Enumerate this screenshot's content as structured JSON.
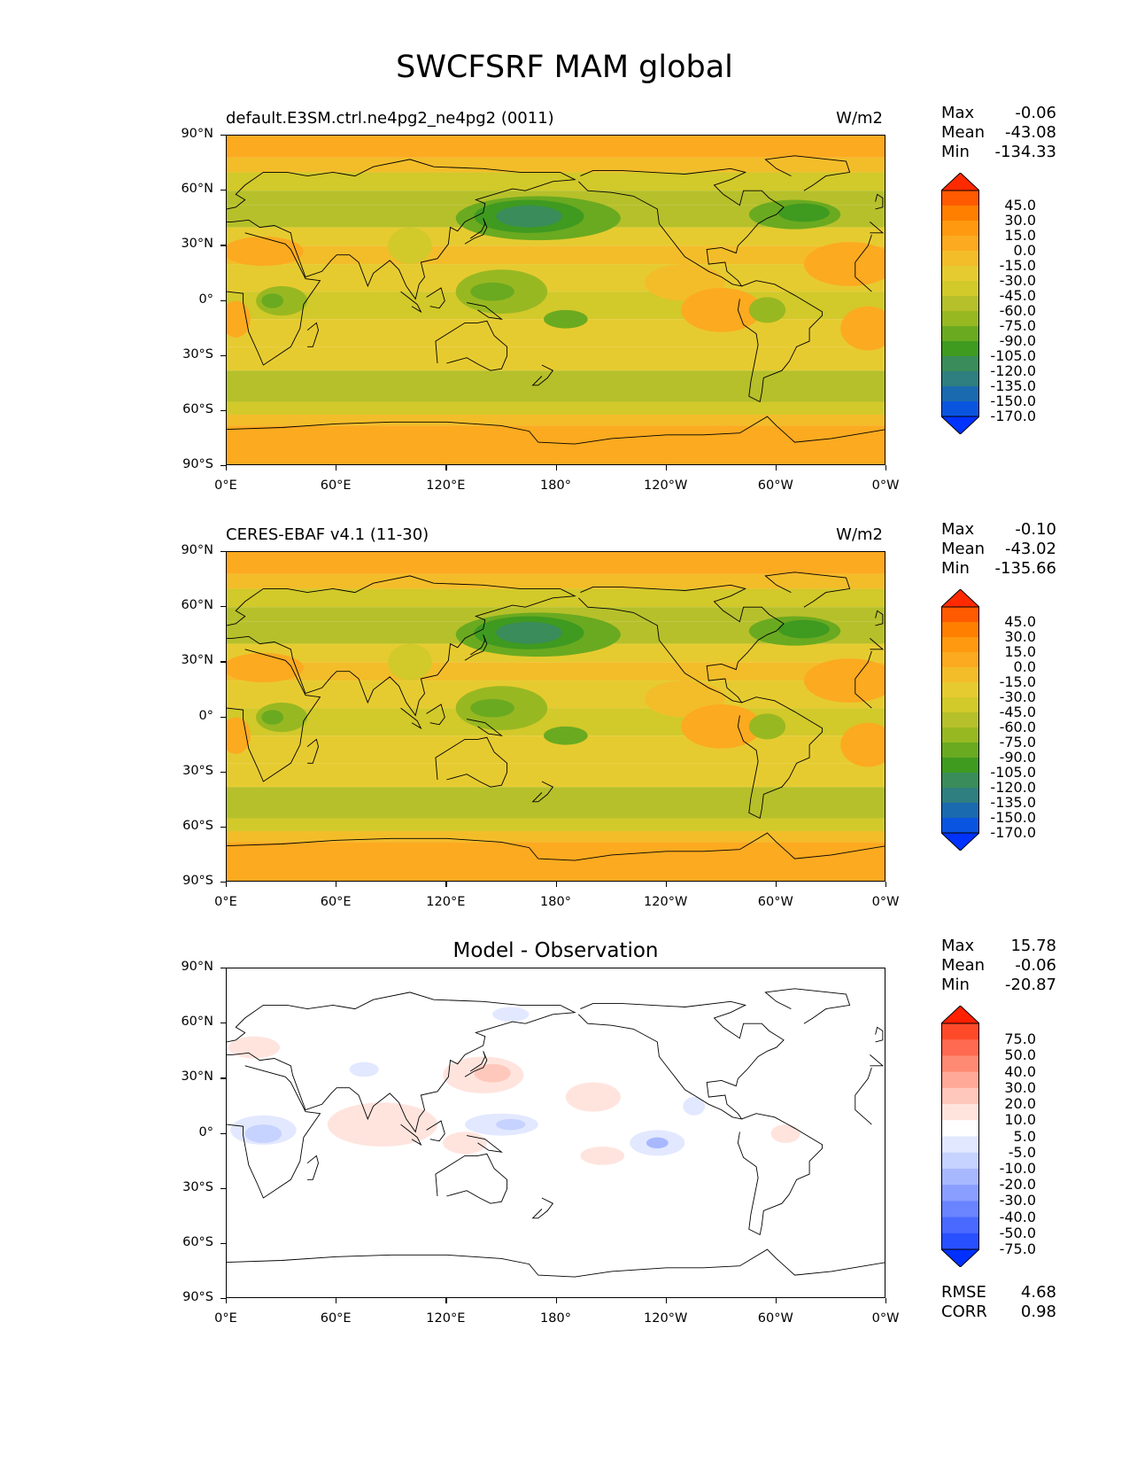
{
  "figure_title": "SWCFSRF MAM global",
  "x_ticks": [
    "0°E",
    "60°E",
    "120°E",
    "180°",
    "120°W",
    "60°W",
    "0°W"
  ],
  "y_ticks": [
    "90°N",
    "60°N",
    "30°N",
    "0°",
    "30°S",
    "60°S",
    "90°S"
  ],
  "panels": [
    {
      "title": "default.E3SM.ctrl.ne4pg2_ne4pg2 (0011)",
      "units": "W/m2",
      "stats": {
        "max_label": "Max",
        "max": "-0.06",
        "mean_label": "Mean",
        "mean": "-43.08",
        "min_label": "Min",
        "min": "-134.33"
      },
      "colorbar_levels": [
        "45.0",
        "30.0",
        "15.0",
        "0.0",
        "-15.0",
        "-30.0",
        "-45.0",
        "-60.0",
        "-75.0",
        "-90.0",
        "-105.0",
        "-120.0",
        "-135.0",
        "-150.0",
        "-170.0"
      ],
      "colorbar_colors": [
        "#ff2a00",
        "#ff5a00",
        "#ff7f00",
        "#ff9a10",
        "#fcaa20",
        "#f3bd2a",
        "#e6cb30",
        "#d2c92a",
        "#b6c02a",
        "#98b822",
        "#6aaa20",
        "#3f9a20",
        "#3a8c5a",
        "#2f7e80",
        "#1a6ab0",
        "#0a55e0",
        "#0033ff"
      ]
    },
    {
      "title": "CERES-EBAF v4.1 (11-30)",
      "units": "W/m2",
      "stats": {
        "max_label": "Max",
        "max": "-0.10",
        "mean_label": "Mean",
        "mean": "-43.02",
        "min_label": "Min",
        "min": "-135.66"
      },
      "colorbar_levels": [
        "45.0",
        "30.0",
        "15.0",
        "0.0",
        "-15.0",
        "-30.0",
        "-45.0",
        "-60.0",
        "-75.0",
        "-90.0",
        "-105.0",
        "-120.0",
        "-135.0",
        "-150.0",
        "-170.0"
      ],
      "colorbar_colors": [
        "#ff2a00",
        "#ff5a00",
        "#ff7f00",
        "#ff9a10",
        "#fcaa20",
        "#f3bd2a",
        "#e6cb30",
        "#d2c92a",
        "#b6c02a",
        "#98b822",
        "#6aaa20",
        "#3f9a20",
        "#3a8c5a",
        "#2f7e80",
        "#1a6ab0",
        "#0a55e0",
        "#0033ff"
      ]
    },
    {
      "title": "Model - Observation",
      "units": "",
      "stats": {
        "max_label": "Max",
        "max": "15.78",
        "mean_label": "Mean",
        "mean": "-0.06",
        "min_label": "Min",
        "min": "-20.87"
      },
      "colorbar_levels": [
        "75.0",
        "50.0",
        "40.0",
        "30.0",
        "20.0",
        "10.0",
        "5.0",
        "-5.0",
        "-10.0",
        "-20.0",
        "-30.0",
        "-40.0",
        "-50.0",
        "-75.0"
      ],
      "colorbar_colors": [
        "#ff2000",
        "#ff4a2a",
        "#ff6a50",
        "#ff8a74",
        "#ffaa98",
        "#ffc8bc",
        "#ffe4de",
        "#ffffff",
        "#e2e8ff",
        "#c6d2ff",
        "#a8b8ff",
        "#8a9eff",
        "#6a84ff",
        "#4a6aff",
        "#2850ff",
        "#0030ff"
      ],
      "footer": {
        "rmse_label": "RMSE",
        "rmse": "4.68",
        "corr_label": "CORR",
        "corr": "0.98"
      }
    }
  ]
}
